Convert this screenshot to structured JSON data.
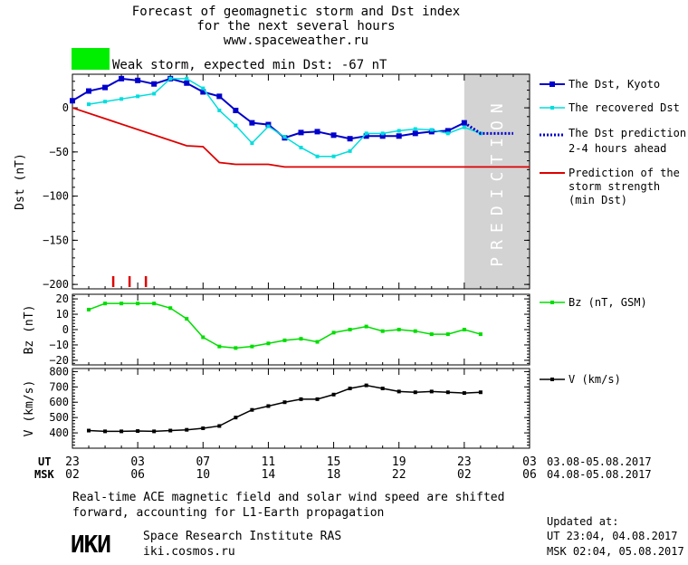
{
  "header": {
    "line1": "Forecast of geomagnetic storm and Dst index",
    "line2": "for the next several hours",
    "url": "www.spaceweather.ru",
    "storm_text": "Weak storm, expected min Dst: -67 nT",
    "storm_color": "#00ee00"
  },
  "colors": {
    "dst_kyoto": "#0000cc",
    "dst_recovered": "#00dddd",
    "prediction": "#dd0000",
    "bz": "#00dd00",
    "v": "#000000",
    "prediction_zone": "#d3d3d3",
    "prediction_text": "#ffffff"
  },
  "prediction_zone_label": "PREDICTION",
  "legend": {
    "dst_kyoto": "The Dst, Kyoto",
    "dst_recovered": "The recovered Dst",
    "dst_pred_1": "The Dst prediction",
    "dst_pred_2": "2-4 hours ahead",
    "strength_1": "Prediction of the",
    "strength_2": "storm strength",
    "strength_3": "(min Dst)",
    "bz": "Bz (nT, GSM)",
    "v": "V (km/s)"
  },
  "time_axis": {
    "ut_label": "UT",
    "msk_label": "MSK",
    "ut_ticks": [
      "23",
      "03",
      "07",
      "11",
      "15",
      "19",
      "23",
      "03"
    ],
    "msk_ticks": [
      "02",
      "06",
      "10",
      "14",
      "18",
      "22",
      "02",
      "06"
    ],
    "ut_range": "03.08-05.08.2017",
    "msk_range": "04.08-05.08.2017"
  },
  "footer": {
    "note_1": "Real-time ACE magnetic field and solar wind speed are shifted",
    "note_2": "forward, accounting for L1-Earth propagation",
    "logo": "ИКИ",
    "institute": "Space Research Institute RAS",
    "site": "iki.cosmos.ru",
    "updated_label": "Updated at:",
    "updated_ut": "UT  23:04, 04.08.2017",
    "updated_msk": "MSK 02:04, 05.08.2017"
  },
  "chart_data": [
    {
      "type": "line",
      "ylabel": "Dst (nT)",
      "ylim": [
        -205,
        38
      ],
      "xlim": [
        0,
        28
      ],
      "yticks": [
        0,
        -50,
        -100,
        -150,
        -200
      ],
      "prediction_zone": [
        24,
        28
      ],
      "series": [
        {
          "name": "The Dst, Kyoto",
          "x": [
            0,
            1,
            2,
            3,
            4,
            5,
            6,
            7,
            8,
            9,
            10,
            11,
            12,
            13,
            14,
            15,
            16,
            17,
            18,
            19,
            20,
            21,
            22,
            23,
            24
          ],
          "y": [
            8,
            19,
            23,
            33,
            31,
            27,
            33,
            28,
            18,
            13,
            -3,
            -17,
            -19,
            -34,
            -28,
            -27,
            -31,
            -35,
            -32,
            -32,
            -32,
            -29,
            -27,
            -26,
            -17
          ]
        },
        {
          "name": "The recovered Dst",
          "x": [
            1,
            2,
            3,
            4,
            5,
            6,
            7,
            8,
            9,
            10,
            11,
            12,
            13,
            14,
            15,
            16,
            17,
            18,
            19,
            20,
            21,
            22,
            23,
            24,
            25
          ],
          "y": [
            4,
            7,
            10,
            13,
            16,
            33,
            33,
            22,
            -3,
            -20,
            -40,
            -21,
            -33,
            -45,
            -55,
            -55,
            -49,
            -29,
            -29,
            -26,
            -24,
            -25,
            -29,
            -22,
            -29
          ]
        },
        {
          "name": "The Dst prediction 2-4 hours ahead",
          "x": [
            24,
            25,
            26,
            27
          ],
          "y": [
            -17,
            -29,
            -29,
            -29
          ]
        },
        {
          "name": "Prediction of the storm strength (min Dst)",
          "step": true,
          "x": [
            0,
            7,
            8,
            9,
            10,
            11,
            12,
            13,
            14,
            28
          ],
          "y": [
            0,
            -43,
            -44,
            -62,
            -64,
            -64,
            -64,
            -67,
            -67,
            -67
          ]
        }
      ],
      "markers_x": [
        2.5,
        3.5,
        4.5
      ]
    },
    {
      "type": "line",
      "ylabel": "Bz (nT)",
      "ylim": [
        -23,
        23
      ],
      "xlim": [
        0,
        28
      ],
      "yticks": [
        20,
        10,
        0,
        -10,
        -20
      ],
      "series": [
        {
          "name": "Bz (nT, GSM)",
          "x": [
            1,
            2,
            3,
            4,
            5,
            6,
            7,
            8,
            9,
            10,
            11,
            12,
            13,
            14,
            15,
            16,
            17,
            18,
            19,
            20,
            21,
            22,
            23,
            24,
            25
          ],
          "y": [
            13,
            17,
            17,
            17,
            17,
            14,
            7,
            -5,
            -11,
            -12,
            -11,
            -9,
            -7,
            -6,
            -8,
            -2,
            0,
            2,
            -1,
            0,
            -1,
            -3,
            -3,
            0,
            -3
          ]
        }
      ]
    },
    {
      "type": "line",
      "ylabel": "V (km/s)",
      "ylim": [
        300,
        820
      ],
      "xlim": [
        0,
        28
      ],
      "yticks": [
        800,
        700,
        600,
        500,
        400
      ],
      "series": [
        {
          "name": "V (km/s)",
          "x": [
            1,
            2,
            3,
            4,
            5,
            6,
            7,
            8,
            9,
            10,
            11,
            12,
            13,
            14,
            15,
            16,
            17,
            18,
            19,
            20,
            21,
            22,
            23,
            24,
            25
          ],
          "y": [
            415,
            410,
            410,
            412,
            410,
            415,
            420,
            430,
            445,
            500,
            550,
            575,
            600,
            620,
            620,
            650,
            690,
            710,
            690,
            670,
            665,
            670,
            665,
            660,
            665
          ]
        }
      ]
    }
  ]
}
